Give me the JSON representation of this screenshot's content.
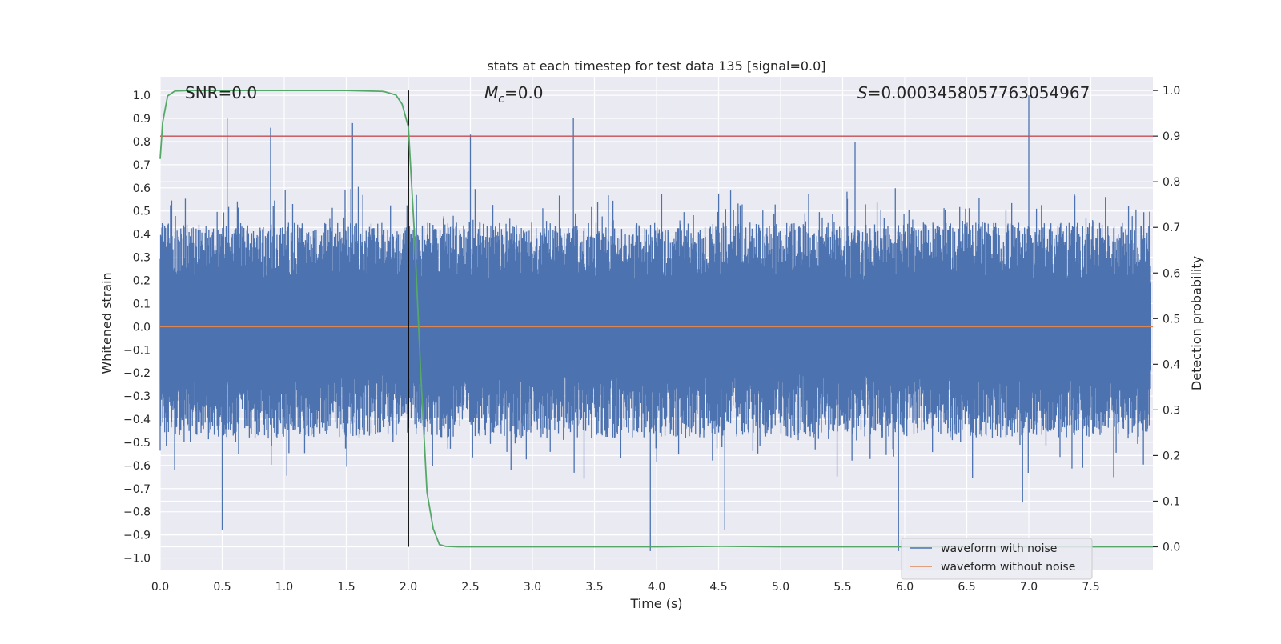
{
  "chart_data": {
    "type": "line",
    "title": "stats at each timestep for test data 135 [signal=0.0]",
    "xlabel": "Time (s)",
    "ylabel_left": "Whitened strain",
    "ylabel_right": "Detection probability",
    "xlim": [
      0.0,
      8.0
    ],
    "ylim_left": [
      -1.05,
      1.08
    ],
    "ylim_right": [
      -0.05,
      1.03
    ],
    "x_ticks": [
      0.0,
      0.5,
      1.0,
      1.5,
      2.0,
      2.5,
      3.0,
      3.5,
      4.0,
      4.5,
      5.0,
      5.5,
      6.0,
      6.5,
      7.0,
      7.5
    ],
    "x_tick_labels": [
      "0.0",
      "0.5",
      "1.0",
      "1.5",
      "2.0",
      "2.5",
      "3.0",
      "3.5",
      "4.0",
      "4.5",
      "5.0",
      "5.5",
      "6.0",
      "6.5",
      "7.0",
      "7.5"
    ],
    "y_left_ticks": [
      1.0,
      0.9,
      0.8,
      0.7,
      0.6,
      0.5,
      0.4,
      0.3,
      0.2,
      0.1,
      0.0,
      -0.1,
      -0.2,
      -0.3,
      -0.4,
      -0.5,
      -0.6,
      -0.7,
      -0.8,
      -0.9,
      -1.0
    ],
    "y_left_tick_labels": [
      "1.0",
      "0.9",
      "0.8",
      "0.7",
      "0.6",
      "0.5",
      "0.4",
      "0.3",
      "0.2",
      "0.1",
      "0.0",
      "−0.1",
      "−0.2",
      "−0.3",
      "−0.4",
      "−0.5",
      "−0.6",
      "−0.7",
      "−0.8",
      "−0.9",
      "−1.0"
    ],
    "y_right_ticks": [
      1.0,
      0.9,
      0.8,
      0.7,
      0.6,
      0.5,
      0.4,
      0.3,
      0.2,
      0.1,
      0.0
    ],
    "y_right_tick_labels": [
      "1.0",
      "0.9",
      "0.8",
      "0.7",
      "0.6",
      "0.5",
      "0.4",
      "0.3",
      "0.2",
      "0.1",
      "0.0"
    ],
    "grid": true,
    "legend_position": "lower-right",
    "annotations": {
      "snr": "SNR=0.0",
      "mc_symbol": "M",
      "mc_subscript": "c",
      "mc_value": "=0.0",
      "s_symbol": "S",
      "s_value": "=0.0003458057763054967"
    },
    "series": [
      {
        "name": "waveform with noise",
        "axis": "left",
        "color": "#4c72b0",
        "description_range": [
          -0.97,
          1.0
        ],
        "spikes": [
          {
            "x": 0.54,
            "y": 0.9
          },
          {
            "x": 0.89,
            "y": 0.86
          },
          {
            "x": 1.55,
            "y": 0.88
          },
          {
            "x": 2.5,
            "y": 0.83
          },
          {
            "x": 3.33,
            "y": 0.9
          },
          {
            "x": 5.6,
            "y": 0.8
          },
          {
            "x": 7.0,
            "y": 1.0
          },
          {
            "x": 0.5,
            "y": -0.88
          },
          {
            "x": 3.95,
            "y": -0.97
          },
          {
            "x": 4.55,
            "y": -0.88
          },
          {
            "x": 5.95,
            "y": -0.97
          },
          {
            "x": 6.95,
            "y": -0.76
          }
        ]
      },
      {
        "name": "waveform without noise",
        "axis": "left",
        "color": "#dd8452",
        "x": [
          0.0,
          8.0
        ],
        "y": [
          0.0,
          0.0
        ]
      },
      {
        "name": "detection probability",
        "axis": "right",
        "color": "#55a868",
        "x": [
          0.0,
          0.02,
          0.06,
          0.12,
          0.25,
          0.5,
          1.0,
          1.5,
          1.8,
          1.9,
          1.95,
          2.0,
          2.05,
          2.1,
          2.15,
          2.2,
          2.25,
          2.3,
          2.4,
          3.0,
          4.0,
          4.5,
          5.0,
          6.0,
          7.0,
          8.0
        ],
        "y": [
          0.85,
          0.93,
          0.988,
          0.999,
          1.0,
          1.0,
          1.0,
          1.0,
          0.998,
          0.99,
          0.97,
          0.92,
          0.68,
          0.38,
          0.12,
          0.04,
          0.005,
          0.001,
          0.0,
          0.0,
          0.0,
          0.001,
          0.0,
          0.0,
          0.0,
          0.0
        ]
      }
    ],
    "reference_lines": {
      "threshold_right": 0.9,
      "threshold_color": "#c44e52",
      "vertical_x": 2.0,
      "vertical_color": "#000000",
      "vertical_ymin_right": 0.0,
      "vertical_ymax_right": 1.0
    }
  },
  "legend": {
    "entries": [
      {
        "label": "waveform with noise",
        "color": "#4c72b0"
      },
      {
        "label": "waveform without noise",
        "color": "#dd8452"
      }
    ]
  },
  "colors": {
    "plot_background": "#eaeaf2",
    "grid": "#ffffff"
  }
}
